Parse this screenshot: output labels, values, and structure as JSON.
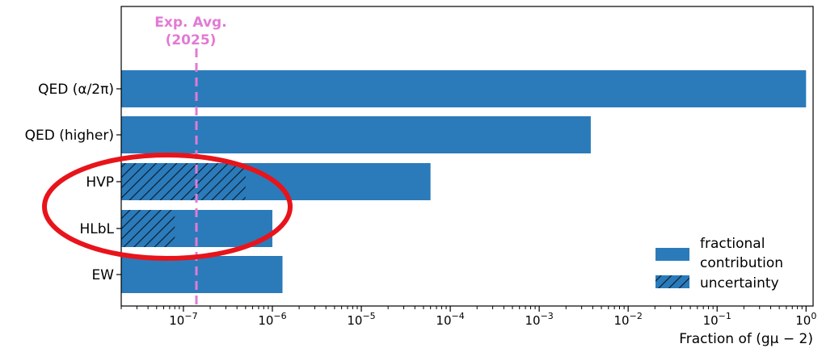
{
  "chart_data": {
    "type": "bar",
    "orientation": "horizontal",
    "x_scale": "log",
    "xlim": [
      2e-08,
      1.2
    ],
    "categories": [
      "QED (α/2π)",
      "QED (higher)",
      "HVP",
      "HLbL",
      "EW"
    ],
    "series": [
      {
        "name": "fractional contribution",
        "style": "solid",
        "color": "#2b7bba",
        "values": [
          1.0,
          0.0038,
          6e-05,
          1e-06,
          1.3e-06
        ]
      },
      {
        "name": "uncertainty",
        "style": "hatched",
        "color": "#2b7bba",
        "values": [
          null,
          null,
          5e-07,
          8e-08,
          null
        ]
      }
    ],
    "xticks": [
      {
        "value": 1e-07,
        "base": "10",
        "exp": "−7"
      },
      {
        "value": 1e-06,
        "base": "10",
        "exp": "−6"
      },
      {
        "value": 1e-05,
        "base": "10",
        "exp": "−5"
      },
      {
        "value": 0.0001,
        "base": "10",
        "exp": "−4"
      },
      {
        "value": 0.001,
        "base": "10",
        "exp": "−3"
      },
      {
        "value": 0.01,
        "base": "10",
        "exp": "−2"
      },
      {
        "value": 0.1,
        "base": "10",
        "exp": "−1"
      },
      {
        "value": 1,
        "base": "10",
        "exp": "0"
      }
    ],
    "xlabel": "Fraction of (gμ − 2)",
    "reference_line": {
      "value": 1.4e-07,
      "label_line1": "Exp. Avg.",
      "label_line2": "(2025)",
      "color": "#e27ad4",
      "style": "dashed"
    },
    "legend": {
      "placement": "lower-right",
      "entries": [
        {
          "label_line1": "fractional",
          "label_line2": "contribution",
          "style": "solid"
        },
        {
          "label_line1": "uncertainty",
          "label_line2": "",
          "style": "hatched"
        }
      ]
    },
    "annotation": {
      "shape": "ellipse",
      "color": "#e8141b",
      "highlights": [
        "HVP",
        "HLbL"
      ]
    },
    "grid": false
  }
}
